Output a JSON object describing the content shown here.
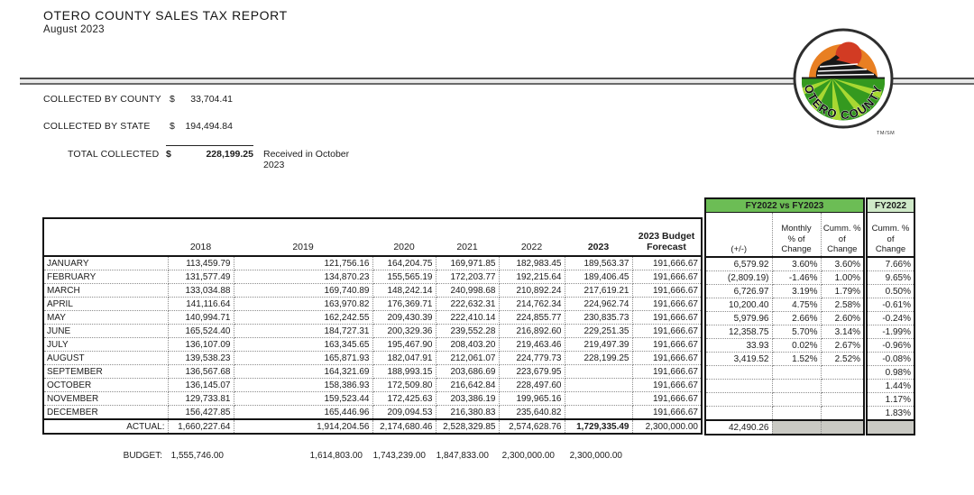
{
  "page": {
    "title": "OTERO COUNTY SALES TAX REPORT",
    "subtitle": "August 2023"
  },
  "logo": {
    "text": "OTERO COUNTY",
    "trademark": "TM/SM"
  },
  "summary": {
    "rows": [
      {
        "label": "COLLECTED BY COUNTY",
        "currency": "$",
        "amount": "33,704.41"
      },
      {
        "label": "COLLECTED BY STATE",
        "currency": "$",
        "amount": "194,494.84"
      }
    ],
    "total": {
      "label": "TOTAL COLLECTED",
      "currency": "$",
      "amount": "228,199.25",
      "note": "Received in October 2023"
    }
  },
  "table": {
    "year_headers": [
      "2018",
      "2019",
      "2020",
      "2021",
      "2022",
      "2023"
    ],
    "forecast_header": "2023 Budget\nForecast",
    "fy_group_header": "FY2022 vs FY2023",
    "fy_sub_headers": [
      "(+/-)",
      "Monthly\n% of\nChange",
      "Cumm. %\nof\nChange"
    ],
    "fy2022_header": "FY2022",
    "fy2022_sub_header": "Cumm. %\nof\nChange",
    "rows": [
      {
        "month": "JANUARY",
        "values": [
          "113,459.79",
          "121,756.16",
          "164,204.75",
          "169,971.85",
          "182,983.45",
          "189,563.37",
          "191,666.67"
        ],
        "fy": [
          "6,579.92",
          "3.60%",
          "3.60%"
        ],
        "fy2022": "7.66%"
      },
      {
        "month": "FEBRUARY",
        "values": [
          "131,577.49",
          "134,870.23",
          "155,565.19",
          "172,203.77",
          "192,215.64",
          "189,406.45",
          "191,666.67"
        ],
        "fy": [
          "(2,809.19)",
          "-1.46%",
          "1.00%"
        ],
        "fy2022": "9.65%"
      },
      {
        "month": "MARCH",
        "values": [
          "133,034.88",
          "169,740.89",
          "148,242.14",
          "240,998.68",
          "210,892.24",
          "217,619.21",
          "191,666.67"
        ],
        "fy": [
          "6,726.97",
          "3.19%",
          "1.79%"
        ],
        "fy2022": "0.50%"
      },
      {
        "month": "APRIL",
        "values": [
          "141,116.64",
          "163,970.82",
          "176,369.71",
          "222,632.31",
          "214,762.34",
          "224,962.74",
          "191,666.67"
        ],
        "fy": [
          "10,200.40",
          "4.75%",
          "2.58%"
        ],
        "fy2022": "-0.61%"
      },
      {
        "month": "MAY",
        "values": [
          "140,994.71",
          "162,242.55",
          "209,430.39",
          "222,410.14",
          "224,855.77",
          "230,835.73",
          "191,666.67"
        ],
        "fy": [
          "5,979.96",
          "2.66%",
          "2.60%"
        ],
        "fy2022": "-0.24%"
      },
      {
        "month": "JUNE",
        "values": [
          "165,524.40",
          "184,727.31",
          "200,329.36",
          "239,552.28",
          "216,892.60",
          "229,251.35",
          "191,666.67"
        ],
        "fy": [
          "12,358.75",
          "5.70%",
          "3.14%"
        ],
        "fy2022": "-1.99%"
      },
      {
        "month": "JULY",
        "values": [
          "136,107.09",
          "163,345.65",
          "195,467.90",
          "208,403.20",
          "219,463.46",
          "219,497.39",
          "191,666.67"
        ],
        "fy": [
          "33.93",
          "0.02%",
          "2.67%"
        ],
        "fy2022": "-0.96%"
      },
      {
        "month": "AUGUST",
        "values": [
          "139,538.23",
          "165,871.93",
          "182,047.91",
          "212,061.07",
          "224,779.73",
          "228,199.25",
          "191,666.67"
        ],
        "fy": [
          "3,419.52",
          "1.52%",
          "2.52%"
        ],
        "fy2022": "-0.08%"
      },
      {
        "month": "SEPTEMBER",
        "values": [
          "136,567.68",
          "164,321.69",
          "188,993.15",
          "203,686.69",
          "223,679.95",
          "",
          "191,666.67"
        ],
        "fy": [
          "",
          "",
          ""
        ],
        "fy2022": "0.98%"
      },
      {
        "month": "OCTOBER",
        "values": [
          "136,145.07",
          "158,386.93",
          "172,509.80",
          "216,642.84",
          "228,497.60",
          "",
          "191,666.67"
        ],
        "fy": [
          "",
          "",
          ""
        ],
        "fy2022": "1.44%"
      },
      {
        "month": "NOVEMBER",
        "values": [
          "129,733.81",
          "159,523.44",
          "172,425.63",
          "203,386.19",
          "199,965.16",
          "",
          "191,666.67"
        ],
        "fy": [
          "",
          "",
          ""
        ],
        "fy2022": "1.17%"
      },
      {
        "month": "DECEMBER",
        "values": [
          "156,427.85",
          "165,446.96",
          "209,094.53",
          "216,380.83",
          "235,640.82",
          "",
          "191,666.67"
        ],
        "fy": [
          "",
          "",
          ""
        ],
        "fy2022": "1.83%"
      }
    ],
    "actual": {
      "label": "ACTUAL:",
      "values": [
        "1,660,227.64",
        "1,914,204.56",
        "2,174,680.46",
        "2,528,329.85",
        "2,574,628.76",
        "1,729,335.49",
        "2,300,000.00"
      ],
      "fy_diff": "42,490.26"
    },
    "budget": {
      "label": "BUDGET:",
      "values": [
        "1,555,746.00",
        "1,614,803.00",
        "1,743,239.00",
        "1,847,833.00",
        "2,300,000.00",
        "2,300,000.00"
      ]
    }
  },
  "colors": {
    "fy_group_header_bg": "#6cbd55",
    "fy2022_header_bg": "#cfe9c8",
    "shaded_cell": "#c9c9c3",
    "border": "#141414"
  }
}
